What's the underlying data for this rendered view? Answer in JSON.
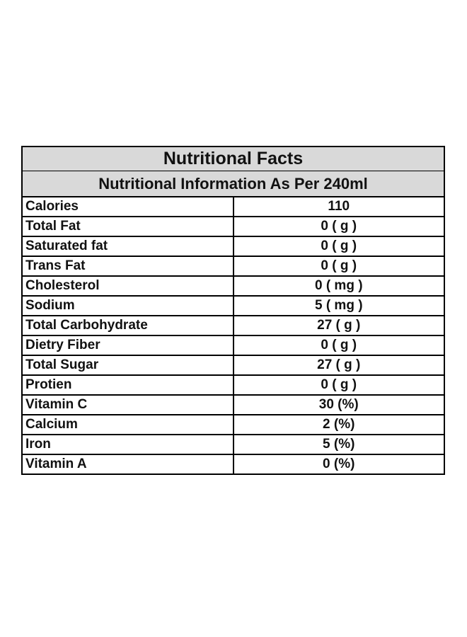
{
  "table": {
    "title": "Nutritional Facts",
    "subtitle": "Nutritional Information As Per 240ml",
    "rows": [
      {
        "name": "Calories",
        "value": "110"
      },
      {
        "name": "Total Fat",
        "value": "0 ( g )"
      },
      {
        "name": "Saturated fat",
        "value": "0 ( g )"
      },
      {
        "name": "Trans Fat",
        "value": "0 ( g )"
      },
      {
        "name": "Cholesterol",
        "value": "0 ( mg )"
      },
      {
        "name": "Sodium",
        "value": "5 ( mg )"
      },
      {
        "name": "Total Carbohydrate",
        "value": "27 ( g )"
      },
      {
        "name": "Dietry Fiber",
        "value": "0 ( g )"
      },
      {
        "name": "Total Sugar",
        "value": "27 ( g )"
      },
      {
        "name": "Protien",
        "value": "0 ( g )"
      },
      {
        "name": "Vitamin C",
        "value": "30 (%)"
      },
      {
        "name": "Calcium",
        "value": "2 (%)"
      },
      {
        "name": "Iron",
        "value": "5 (%)"
      },
      {
        "name": "Vitamin A",
        "value": "0 (%)"
      }
    ]
  },
  "colors": {
    "header_background": "#d9d9d9",
    "border": "#000000",
    "text": "#111111"
  }
}
